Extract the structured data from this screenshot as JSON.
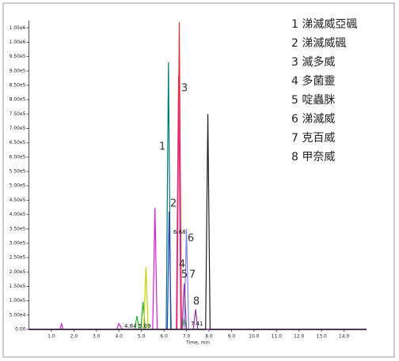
{
  "chart_data": {
    "type": "line",
    "x_label": "Time, min",
    "xlim": [
      0,
      15
    ],
    "ylim": [
      0,
      1070000
    ],
    "xticks": [
      {
        "value": 1,
        "label": "1.0"
      },
      {
        "value": 2,
        "label": "2.0"
      },
      {
        "value": 3,
        "label": "3.0"
      },
      {
        "value": 4,
        "label": "4.0"
      },
      {
        "value": 5,
        "label": "5.0"
      },
      {
        "value": 6,
        "label": "6.0"
      },
      {
        "value": 7,
        "label": "7.0"
      },
      {
        "value": 8,
        "label": "8.0"
      },
      {
        "value": 9,
        "label": "9.0"
      },
      {
        "value": 10,
        "label": "10.0"
      },
      {
        "value": 11,
        "label": "11.0"
      },
      {
        "value": 12,
        "label": "12.0"
      },
      {
        "value": 13,
        "label": "13.0"
      },
      {
        "value": 14,
        "label": "14.0"
      }
    ],
    "yticks": [
      {
        "value": 0,
        "label": "0.00"
      },
      {
        "value": 50000,
        "label": "5.00e4"
      },
      {
        "value": 100000,
        "label": "1.00e5"
      },
      {
        "value": 150000,
        "label": "1.50e5"
      },
      {
        "value": 200000,
        "label": "2.00e5"
      },
      {
        "value": 250000,
        "label": "2.50e5"
      },
      {
        "value": 300000,
        "label": "3.00e5"
      },
      {
        "value": 350000,
        "label": "3.50e5"
      },
      {
        "value": 400000,
        "label": "4.00e5"
      },
      {
        "value": 450000,
        "label": "4.50e5"
      },
      {
        "value": 500000,
        "label": "5.00e5"
      },
      {
        "value": 550000,
        "label": "5.50e5"
      },
      {
        "value": 600000,
        "label": "6.00e5"
      },
      {
        "value": 650000,
        "label": "6.50e5"
      },
      {
        "value": 700000,
        "label": "7.00e5"
      },
      {
        "value": 750000,
        "label": "7.50e5"
      },
      {
        "value": 800000,
        "label": "8.00e5"
      },
      {
        "value": 850000,
        "label": "8.50e5"
      },
      {
        "value": 900000,
        "label": "9.00e5"
      },
      {
        "value": 950000,
        "label": "9.50e5"
      },
      {
        "value": 1000000,
        "label": "1.00e6"
      },
      {
        "value": 1050000,
        "label": "1.05e6"
      }
    ],
    "series": [
      {
        "color": "#20b020",
        "x": [
          0,
          4.7,
          4.8,
          4.9,
          4.97,
          5.07,
          5.17,
          6.8,
          6.9,
          7.0,
          15
        ],
        "values": [
          0,
          0,
          47000,
          0,
          0,
          96000,
          0,
          0,
          40000,
          0,
          0
        ]
      },
      {
        "color": "#c8d000",
        "x": [
          0,
          5.1,
          5.2,
          5.3,
          15
        ],
        "values": [
          0,
          0,
          217000,
          0,
          0
        ]
      },
      {
        "color": "#d020d0",
        "x": [
          0,
          1.38,
          1.45,
          1.52,
          3.9,
          4.0,
          4.15,
          5.5,
          5.6,
          5.7,
          6.55,
          6.65,
          6.75,
          15
        ],
        "values": [
          0,
          0,
          20000,
          0,
          0,
          20000,
          0,
          0,
          423000,
          0,
          0,
          885000,
          0,
          0
        ]
      },
      {
        "color": "#007878",
        "x": [
          0,
          6.1,
          6.2,
          6.3,
          15
        ],
        "values": [
          0,
          0,
          930000,
          0,
          0
        ]
      },
      {
        "color": "#2040c8",
        "x": [
          0,
          6.15,
          6.23,
          6.32,
          15
        ],
        "values": [
          0,
          0,
          410000,
          0,
          0
        ]
      },
      {
        "color": "#e83030",
        "x": [
          0,
          6.58,
          6.68,
          6.78,
          15
        ],
        "values": [
          0,
          0,
          1070000,
          0,
          0
        ]
      },
      {
        "color": "#8080e0",
        "x": [
          0,
          6.9,
          7.0,
          7.1,
          15
        ],
        "values": [
          0,
          0,
          350000,
          0,
          0
        ]
      },
      {
        "color": "#9030a0",
        "x": [
          0,
          6.8,
          6.9,
          7.0,
          7.3,
          7.41,
          7.5,
          15
        ],
        "values": [
          0,
          0,
          160000,
          0,
          0,
          70000,
          0,
          0
        ]
      },
      {
        "color": "#202020",
        "x": [
          0,
          7.85,
          7.95,
          8.05,
          15
        ],
        "values": [
          0,
          0,
          750000,
          0,
          0
        ]
      }
    ],
    "legend_items": [
      "1 涕滅威亞碸",
      "2 涕滅威碸",
      "3 滅多威",
      "4 多菌靈",
      "5 啶蟲脒",
      "6 涕滅威",
      "7 克百威",
      "8 甲奈威"
    ],
    "peak_labels": [
      "1",
      "2",
      "3",
      "4",
      "5",
      "6",
      "7",
      "8"
    ],
    "retention_labels": [
      "6.68",
      "4.84",
      "5.09",
      "7.41"
    ]
  }
}
